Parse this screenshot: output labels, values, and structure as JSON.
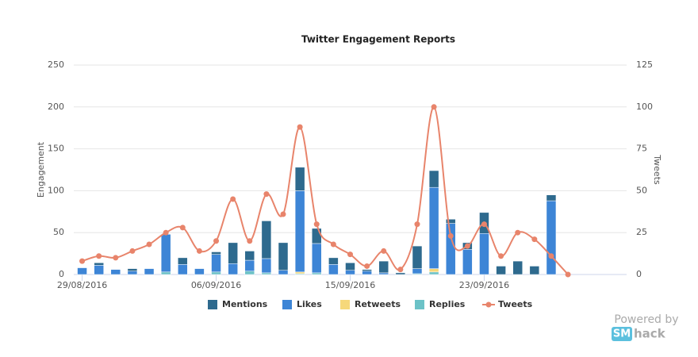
{
  "chart_data": {
    "type": "bar",
    "stacked": true,
    "title": "Twitter Engagement Reports",
    "ylabel": "Engagement",
    "y2label": "Tweets",
    "categories": [
      "29/08/2016",
      null,
      null,
      null,
      null,
      null,
      null,
      null,
      "06/09/2016",
      null,
      null,
      null,
      null,
      null,
      null,
      null,
      "15/09/2016",
      null,
      null,
      null,
      null,
      null,
      null,
      null,
      "23/09/2016",
      null,
      null,
      null,
      null,
      null,
      null,
      null,
      null
    ],
    "ylim": [
      0,
      250
    ],
    "yticks": [
      0,
      50,
      100,
      150,
      200,
      250
    ],
    "y2lim": [
      0,
      125
    ],
    "y2ticks": [
      0,
      25,
      50,
      75,
      100,
      125
    ],
    "grid": true,
    "legend": "bottom",
    "series": [
      {
        "name": "Mentions",
        "color": "#2e6a8e",
        "values": [
          0,
          3,
          0,
          3,
          0,
          0,
          8,
          0,
          3,
          25,
          11,
          45,
          33,
          28,
          18,
          8,
          9,
          2,
          14,
          2,
          27,
          20,
          5,
          8,
          25,
          10,
          16,
          10,
          7,
          0,
          null,
          null,
          null
        ]
      },
      {
        "name": "Likes",
        "color": "#3d85d6",
        "values": [
          8,
          11,
          6,
          4,
          7,
          45,
          12,
          7,
          21,
          13,
          13,
          17,
          5,
          97,
          35,
          12,
          5,
          4,
          2,
          0,
          6,
          97,
          61,
          30,
          49,
          0,
          0,
          0,
          88,
          0,
          null,
          null,
          null
        ]
      },
      {
        "name": "Retweets",
        "color": "#f6d87a",
        "values": [
          0,
          0,
          0,
          0,
          0,
          0,
          0,
          0,
          0,
          0,
          0,
          0,
          0,
          2,
          0,
          0,
          0,
          0,
          0,
          0,
          0,
          4,
          0,
          0,
          0,
          0,
          0,
          0,
          0,
          0,
          null,
          null,
          null
        ]
      },
      {
        "name": "Replies",
        "color": "#6cc2c7",
        "values": [
          0,
          0,
          0,
          0,
          0,
          3,
          0,
          0,
          3,
          0,
          4,
          2,
          0,
          1,
          2,
          0,
          0,
          0,
          0,
          0,
          1,
          3,
          0,
          0,
          0,
          0,
          0,
          0,
          0,
          0,
          null,
          null,
          null
        ]
      },
      {
        "name": "Tweets",
        "type": "line",
        "axis": "y2",
        "color": "#e8846b",
        "values": [
          8,
          11,
          10,
          14,
          18,
          25,
          28,
          14,
          20,
          45,
          20,
          48,
          36,
          88,
          30,
          18,
          12,
          5,
          14,
          3,
          30,
          100,
          23,
          17,
          30,
          11,
          25,
          21,
          11,
          0,
          null,
          null,
          null
        ]
      }
    ]
  },
  "watermark": {
    "prefix": "Powered by",
    "brand1": "SM",
    "brand2": "hack"
  }
}
